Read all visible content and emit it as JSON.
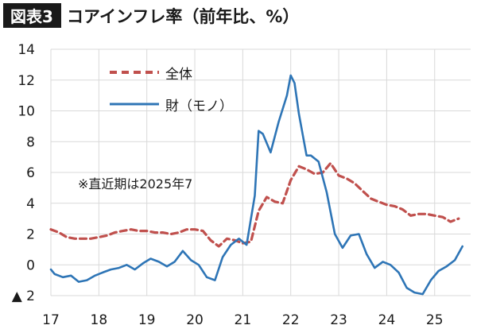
{
  "header": {
    "figure_label": "図表3",
    "title": "コアインフレ率（前年比、%）"
  },
  "note": "※直近期は2025年7",
  "colors": {
    "zentai": "#c0504d",
    "zai": "#2e75b6",
    "label_box": "#1a1a1a",
    "grid": "#d9d9d9"
  },
  "chart_data": {
    "type": "line",
    "xlim": [
      2017,
      2025.75
    ],
    "ylim": [
      -2,
      14
    ],
    "y_ticks": [
      {
        "value": 14,
        "label": "14"
      },
      {
        "value": 12,
        "label": "12"
      },
      {
        "value": 10,
        "label": "10"
      },
      {
        "value": 8,
        "label": "8"
      },
      {
        "value": 6,
        "label": "6"
      },
      {
        "value": 4,
        "label": "4"
      },
      {
        "value": 2,
        "label": "2"
      },
      {
        "value": 0,
        "label": "0"
      },
      {
        "value": -2,
        "label": "▲ 2"
      }
    ],
    "x_ticks": [
      {
        "value": 2017,
        "label": "17"
      },
      {
        "value": 2018,
        "label": "18"
      },
      {
        "value": 2019,
        "label": "19"
      },
      {
        "value": 2020,
        "label": "20"
      },
      {
        "value": 2021,
        "label": "21"
      },
      {
        "value": 2022,
        "label": "22"
      },
      {
        "value": 2023,
        "label": "23"
      },
      {
        "value": 2024,
        "label": "24"
      },
      {
        "value": 2025,
        "label": "25"
      }
    ],
    "grid": true,
    "legend_position": "top-left",
    "series": [
      {
        "name": "全体",
        "style": "dashed",
        "points": [
          [
            2017.0,
            2.3
          ],
          [
            2017.17,
            2.1
          ],
          [
            2017.33,
            1.8
          ],
          [
            2017.5,
            1.7
          ],
          [
            2017.67,
            1.7
          ],
          [
            2017.83,
            1.7
          ],
          [
            2018.0,
            1.8
          ],
          [
            2018.17,
            1.9
          ],
          [
            2018.33,
            2.1
          ],
          [
            2018.5,
            2.2
          ],
          [
            2018.67,
            2.3
          ],
          [
            2018.83,
            2.2
          ],
          [
            2019.0,
            2.2
          ],
          [
            2019.17,
            2.1
          ],
          [
            2019.33,
            2.1
          ],
          [
            2019.5,
            2.0
          ],
          [
            2019.67,
            2.1
          ],
          [
            2019.83,
            2.3
          ],
          [
            2020.0,
            2.3
          ],
          [
            2020.17,
            2.2
          ],
          [
            2020.33,
            1.6
          ],
          [
            2020.5,
            1.2
          ],
          [
            2020.67,
            1.7
          ],
          [
            2020.83,
            1.6
          ],
          [
            2021.0,
            1.4
          ],
          [
            2021.17,
            1.5
          ],
          [
            2021.33,
            3.5
          ],
          [
            2021.5,
            4.4
          ],
          [
            2021.67,
            4.1
          ],
          [
            2021.83,
            4.0
          ],
          [
            2022.0,
            5.5
          ],
          [
            2022.17,
            6.4
          ],
          [
            2022.33,
            6.2
          ],
          [
            2022.5,
            5.9
          ],
          [
            2022.67,
            6.0
          ],
          [
            2022.83,
            6.6
          ],
          [
            2023.0,
            5.8
          ],
          [
            2023.17,
            5.6
          ],
          [
            2023.33,
            5.3
          ],
          [
            2023.5,
            4.8
          ],
          [
            2023.67,
            4.3
          ],
          [
            2023.83,
            4.1
          ],
          [
            2024.0,
            3.9
          ],
          [
            2024.17,
            3.8
          ],
          [
            2024.33,
            3.6
          ],
          [
            2024.5,
            3.2
          ],
          [
            2024.67,
            3.3
          ],
          [
            2024.83,
            3.3
          ],
          [
            2025.0,
            3.2
          ],
          [
            2025.17,
            3.1
          ],
          [
            2025.33,
            2.8
          ],
          [
            2025.5,
            3.0
          ]
        ]
      },
      {
        "name": "財（モノ）",
        "style": "solid",
        "points": [
          [
            2017.0,
            -0.3
          ],
          [
            2017.08,
            -0.6
          ],
          [
            2017.25,
            -0.8
          ],
          [
            2017.42,
            -0.7
          ],
          [
            2017.58,
            -1.1
          ],
          [
            2017.75,
            -1.0
          ],
          [
            2017.92,
            -0.7
          ],
          [
            2018.08,
            -0.5
          ],
          [
            2018.25,
            -0.3
          ],
          [
            2018.42,
            -0.2
          ],
          [
            2018.58,
            0.0
          ],
          [
            2018.75,
            -0.3
          ],
          [
            2018.92,
            0.1
          ],
          [
            2019.08,
            0.4
          ],
          [
            2019.25,
            0.2
          ],
          [
            2019.42,
            -0.1
          ],
          [
            2019.58,
            0.2
          ],
          [
            2019.75,
            0.9
          ],
          [
            2019.92,
            0.3
          ],
          [
            2020.08,
            0.0
          ],
          [
            2020.25,
            -0.8
          ],
          [
            2020.42,
            -1.0
          ],
          [
            2020.58,
            0.5
          ],
          [
            2020.75,
            1.3
          ],
          [
            2020.92,
            1.7
          ],
          [
            2021.08,
            1.3
          ],
          [
            2021.25,
            4.5
          ],
          [
            2021.33,
            8.7
          ],
          [
            2021.42,
            8.5
          ],
          [
            2021.58,
            7.3
          ],
          [
            2021.75,
            9.3
          ],
          [
            2021.92,
            11.0
          ],
          [
            2022.0,
            12.3
          ],
          [
            2022.08,
            11.8
          ],
          [
            2022.17,
            9.8
          ],
          [
            2022.33,
            7.1
          ],
          [
            2022.42,
            7.1
          ],
          [
            2022.58,
            6.7
          ],
          [
            2022.75,
            4.7
          ],
          [
            2022.92,
            2.0
          ],
          [
            2023.08,
            1.1
          ],
          [
            2023.25,
            1.9
          ],
          [
            2023.42,
            2.0
          ],
          [
            2023.58,
            0.7
          ],
          [
            2023.75,
            -0.2
          ],
          [
            2023.92,
            0.2
          ],
          [
            2024.08,
            0.0
          ],
          [
            2024.25,
            -0.5
          ],
          [
            2024.42,
            -1.5
          ],
          [
            2024.58,
            -1.8
          ],
          [
            2024.75,
            -1.9
          ],
          [
            2024.92,
            -1.0
          ],
          [
            2025.08,
            -0.4
          ],
          [
            2025.25,
            -0.1
          ],
          [
            2025.42,
            0.3
          ],
          [
            2025.58,
            1.2
          ]
        ]
      }
    ]
  }
}
